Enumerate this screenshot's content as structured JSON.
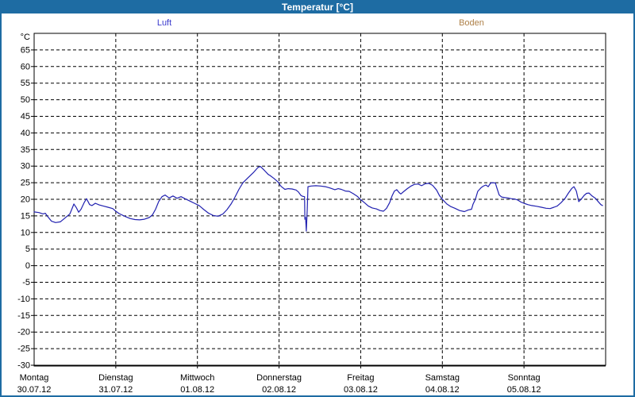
{
  "window": {
    "title": "Temperatur [°C]"
  },
  "legend": [
    {
      "label": "Luft",
      "color": "#3a3acc"
    },
    {
      "label": "Boden",
      "color": "#ae8048"
    }
  ],
  "chart_data": {
    "type": "line",
    "title": "Temperatur [°C]",
    "ylabel": "°C",
    "ylim": [
      -30,
      70
    ],
    "ytick_step": 5,
    "ytick_labels": [
      65,
      60,
      55,
      50,
      45,
      40,
      35,
      30,
      25,
      20,
      15,
      10,
      5,
      0,
      -5,
      -10,
      -15,
      -20,
      -25,
      -30
    ],
    "grid": "dashed",
    "x_hours_range": [
      0,
      168
    ],
    "x_day_ticks": [
      {
        "day": "Montag",
        "date": "30.07.12"
      },
      {
        "day": "Dienstag",
        "date": "31.07.12"
      },
      {
        "day": "Mittwoch",
        "date": "01.08.12"
      },
      {
        "day": "Donnerstag",
        "date": "02.08.12"
      },
      {
        "day": "Freitag",
        "date": "03.08.12"
      },
      {
        "day": "Samstag",
        "date": "04.08.12"
      },
      {
        "day": "Sonntag",
        "date": "05.08.12"
      }
    ],
    "series": [
      {
        "name": "Luft",
        "color": "#2121b0",
        "points_hours_temp": [
          [
            0.0,
            16.2
          ],
          [
            1.4,
            16.0
          ],
          [
            2.6,
            15.6
          ],
          [
            3.3,
            15.8
          ],
          [
            4.0,
            14.8
          ],
          [
            5.1,
            13.4
          ],
          [
            6.3,
            13.0
          ],
          [
            7.7,
            13.2
          ],
          [
            9.1,
            14.4
          ],
          [
            10.5,
            15.6
          ],
          [
            11.0,
            16.8
          ],
          [
            11.7,
            18.6
          ],
          [
            12.4,
            17.5
          ],
          [
            13.1,
            16.1
          ],
          [
            13.8,
            17.0
          ],
          [
            14.7,
            19.0
          ],
          [
            15.4,
            20.2
          ],
          [
            16.3,
            18.4
          ],
          [
            17.0,
            18.1
          ],
          [
            18.0,
            18.8
          ],
          [
            19.1,
            18.3
          ],
          [
            20.3,
            18.0
          ],
          [
            21.7,
            17.6
          ],
          [
            23.1,
            17.2
          ],
          [
            24.0,
            16.4
          ],
          [
            25.0,
            15.7
          ],
          [
            26.6,
            14.9
          ],
          [
            28.2,
            14.2
          ],
          [
            29.6,
            13.9
          ],
          [
            31.0,
            13.8
          ],
          [
            32.4,
            14.0
          ],
          [
            33.8,
            14.5
          ],
          [
            34.8,
            15.3
          ],
          [
            35.7,
            17.0
          ],
          [
            36.6,
            19.3
          ],
          [
            37.6,
            20.8
          ],
          [
            38.5,
            21.3
          ],
          [
            39.7,
            20.4
          ],
          [
            40.8,
            21.0
          ],
          [
            42.0,
            20.3
          ],
          [
            43.2,
            20.8
          ],
          [
            44.3,
            20.2
          ],
          [
            45.7,
            19.5
          ],
          [
            47.1,
            18.8
          ],
          [
            48.5,
            18.1
          ],
          [
            49.9,
            16.9
          ],
          [
            51.3,
            15.8
          ],
          [
            52.7,
            15.1
          ],
          [
            54.1,
            14.9
          ],
          [
            55.5,
            15.6
          ],
          [
            56.7,
            16.9
          ],
          [
            57.9,
            18.6
          ],
          [
            59.0,
            20.6
          ],
          [
            60.2,
            23.0
          ],
          [
            61.4,
            25.0
          ],
          [
            62.8,
            26.4
          ],
          [
            64.4,
            28.0
          ],
          [
            65.8,
            29.6
          ],
          [
            66.5,
            29.9
          ],
          [
            67.7,
            28.7
          ],
          [
            68.8,
            27.5
          ],
          [
            69.3,
            27.2
          ],
          [
            70.5,
            26.3
          ],
          [
            71.6,
            25.3
          ],
          [
            72.6,
            23.9
          ],
          [
            73.7,
            23.0
          ],
          [
            74.7,
            23.2
          ],
          [
            75.8,
            23.1
          ],
          [
            77.0,
            22.8
          ],
          [
            77.7,
            22.2
          ],
          [
            78.4,
            21.2
          ],
          [
            78.9,
            20.9
          ],
          [
            79.5,
            20.8
          ],
          [
            79.6,
            14.0
          ],
          [
            79.8,
            14.6
          ],
          [
            80.0,
            10.4
          ],
          [
            80.3,
            17.0
          ],
          [
            80.5,
            23.8
          ],
          [
            81.4,
            24.0
          ],
          [
            82.8,
            24.1
          ],
          [
            84.2,
            24.0
          ],
          [
            85.6,
            23.8
          ],
          [
            87.0,
            23.4
          ],
          [
            88.4,
            22.9
          ],
          [
            89.4,
            23.2
          ],
          [
            90.3,
            23.0
          ],
          [
            91.5,
            22.5
          ],
          [
            92.6,
            22.4
          ],
          [
            93.8,
            21.7
          ],
          [
            95.0,
            20.9
          ],
          [
            95.9,
            20.0
          ],
          [
            97.1,
            19.0
          ],
          [
            98.2,
            18.0
          ],
          [
            99.4,
            17.4
          ],
          [
            100.6,
            17.1
          ],
          [
            101.7,
            16.6
          ],
          [
            102.7,
            16.4
          ],
          [
            103.6,
            17.3
          ],
          [
            104.5,
            19.0
          ],
          [
            105.2,
            21.0
          ],
          [
            105.9,
            22.5
          ],
          [
            106.6,
            22.9
          ],
          [
            107.3,
            22.0
          ],
          [
            107.8,
            21.6
          ],
          [
            108.7,
            22.4
          ],
          [
            109.7,
            23.2
          ],
          [
            110.8,
            24.0
          ],
          [
            111.8,
            24.5
          ],
          [
            112.9,
            24.6
          ],
          [
            113.9,
            24.1
          ],
          [
            115.0,
            24.7
          ],
          [
            116.0,
            24.8
          ],
          [
            117.1,
            24.2
          ],
          [
            118.3,
            22.8
          ],
          [
            119.2,
            21.0
          ],
          [
            120.2,
            19.8
          ],
          [
            121.3,
            18.6
          ],
          [
            122.5,
            17.8
          ],
          [
            123.7,
            17.3
          ],
          [
            125.1,
            16.6
          ],
          [
            126.5,
            16.3
          ],
          [
            127.6,
            16.8
          ],
          [
            128.6,
            17.0
          ],
          [
            129.0,
            18.5
          ],
          [
            129.7,
            20.0
          ],
          [
            130.4,
            22.4
          ],
          [
            131.4,
            23.5
          ],
          [
            132.1,
            24.0
          ],
          [
            132.8,
            24.3
          ],
          [
            133.5,
            23.8
          ],
          [
            134.2,
            24.9
          ],
          [
            134.9,
            25.0
          ],
          [
            135.6,
            24.9
          ],
          [
            136.0,
            23.5
          ],
          [
            136.7,
            21.3
          ],
          [
            137.4,
            20.7
          ],
          [
            138.4,
            20.5
          ],
          [
            139.3,
            20.4
          ],
          [
            140.2,
            20.2
          ],
          [
            141.2,
            20.1
          ],
          [
            142.1,
            19.8
          ],
          [
            143.0,
            19.2
          ],
          [
            144.0,
            18.8
          ],
          [
            145.1,
            18.4
          ],
          [
            146.3,
            18.1
          ],
          [
            147.7,
            17.9
          ],
          [
            149.1,
            17.6
          ],
          [
            150.5,
            17.3
          ],
          [
            151.7,
            17.2
          ],
          [
            152.8,
            17.6
          ],
          [
            153.8,
            18.0
          ],
          [
            154.9,
            19.0
          ],
          [
            156.1,
            20.3
          ],
          [
            157.0,
            21.8
          ],
          [
            158.0,
            23.2
          ],
          [
            158.7,
            23.8
          ],
          [
            159.4,
            22.5
          ],
          [
            160.1,
            19.3
          ],
          [
            160.8,
            20.0
          ],
          [
            161.7,
            21.2
          ],
          [
            162.4,
            21.8
          ],
          [
            163.1,
            21.9
          ],
          [
            164.0,
            21.0
          ],
          [
            165.0,
            20.3
          ],
          [
            165.9,
            19.2
          ],
          [
            166.6,
            18.4
          ],
          [
            167.1,
            18.1
          ]
        ]
      },
      {
        "name": "Boden",
        "color": "#ae8048",
        "points_hours_temp": []
      }
    ]
  }
}
